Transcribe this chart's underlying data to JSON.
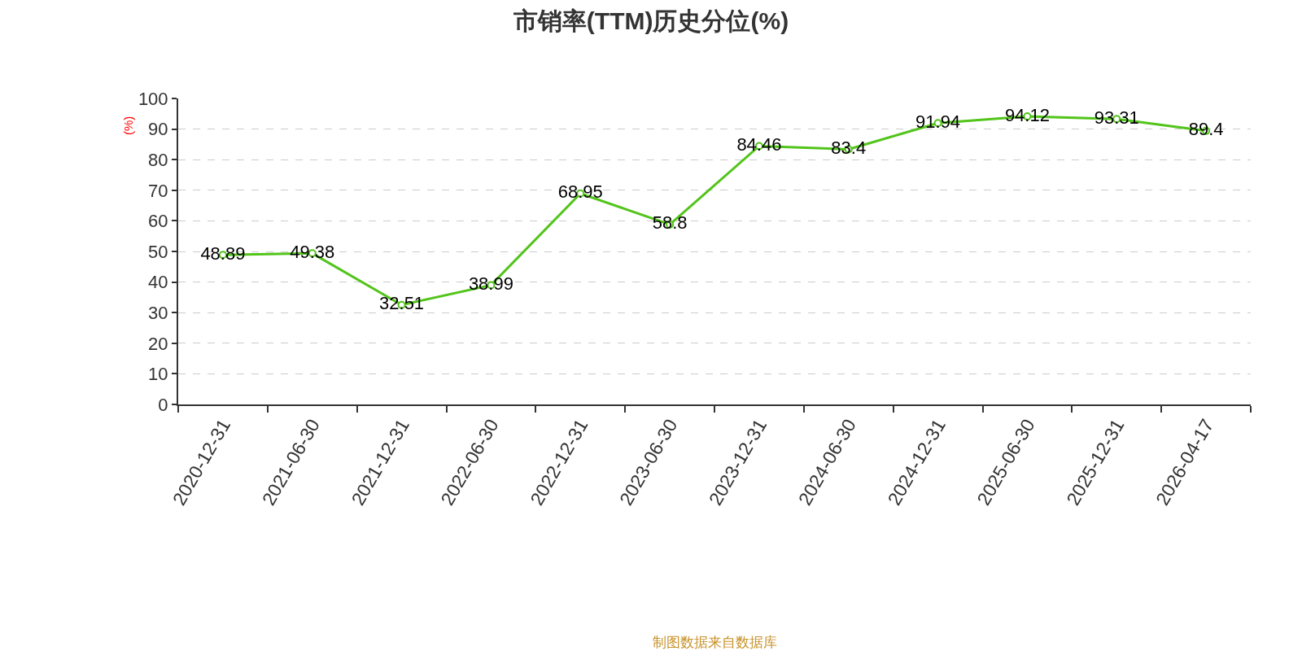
{
  "chart_data": {
    "type": "line",
    "title": "市销率(TTM)历史分位(%)",
    "ylabel": "(%)",
    "annotations": [
      "制图数据来自数据库"
    ],
    "categories": [
      "2020-12-31",
      "2021-06-30",
      "2021-12-31",
      "2022-06-30",
      "2022-12-31",
      "2023-06-30",
      "2023-12-31",
      "2024-06-30",
      "2024-12-31",
      "2025-06-30",
      "2025-12-31",
      "2026-04-17"
    ],
    "series": [
      {
        "color": "#52c41a",
        "values": [
          48.89,
          49.38,
          32.51,
          38.99,
          68.95,
          58.8,
          84.46,
          83.4,
          91.94,
          94.12,
          93.31,
          89.4
        ]
      }
    ],
    "ylim": [
      0,
      100
    ],
    "yticks": [
      0,
      10,
      20,
      30,
      40,
      50,
      60,
      70,
      80,
      90,
      100
    ],
    "grid": "y",
    "marker": "circle",
    "line_style": "solid",
    "data_labels": true
  }
}
